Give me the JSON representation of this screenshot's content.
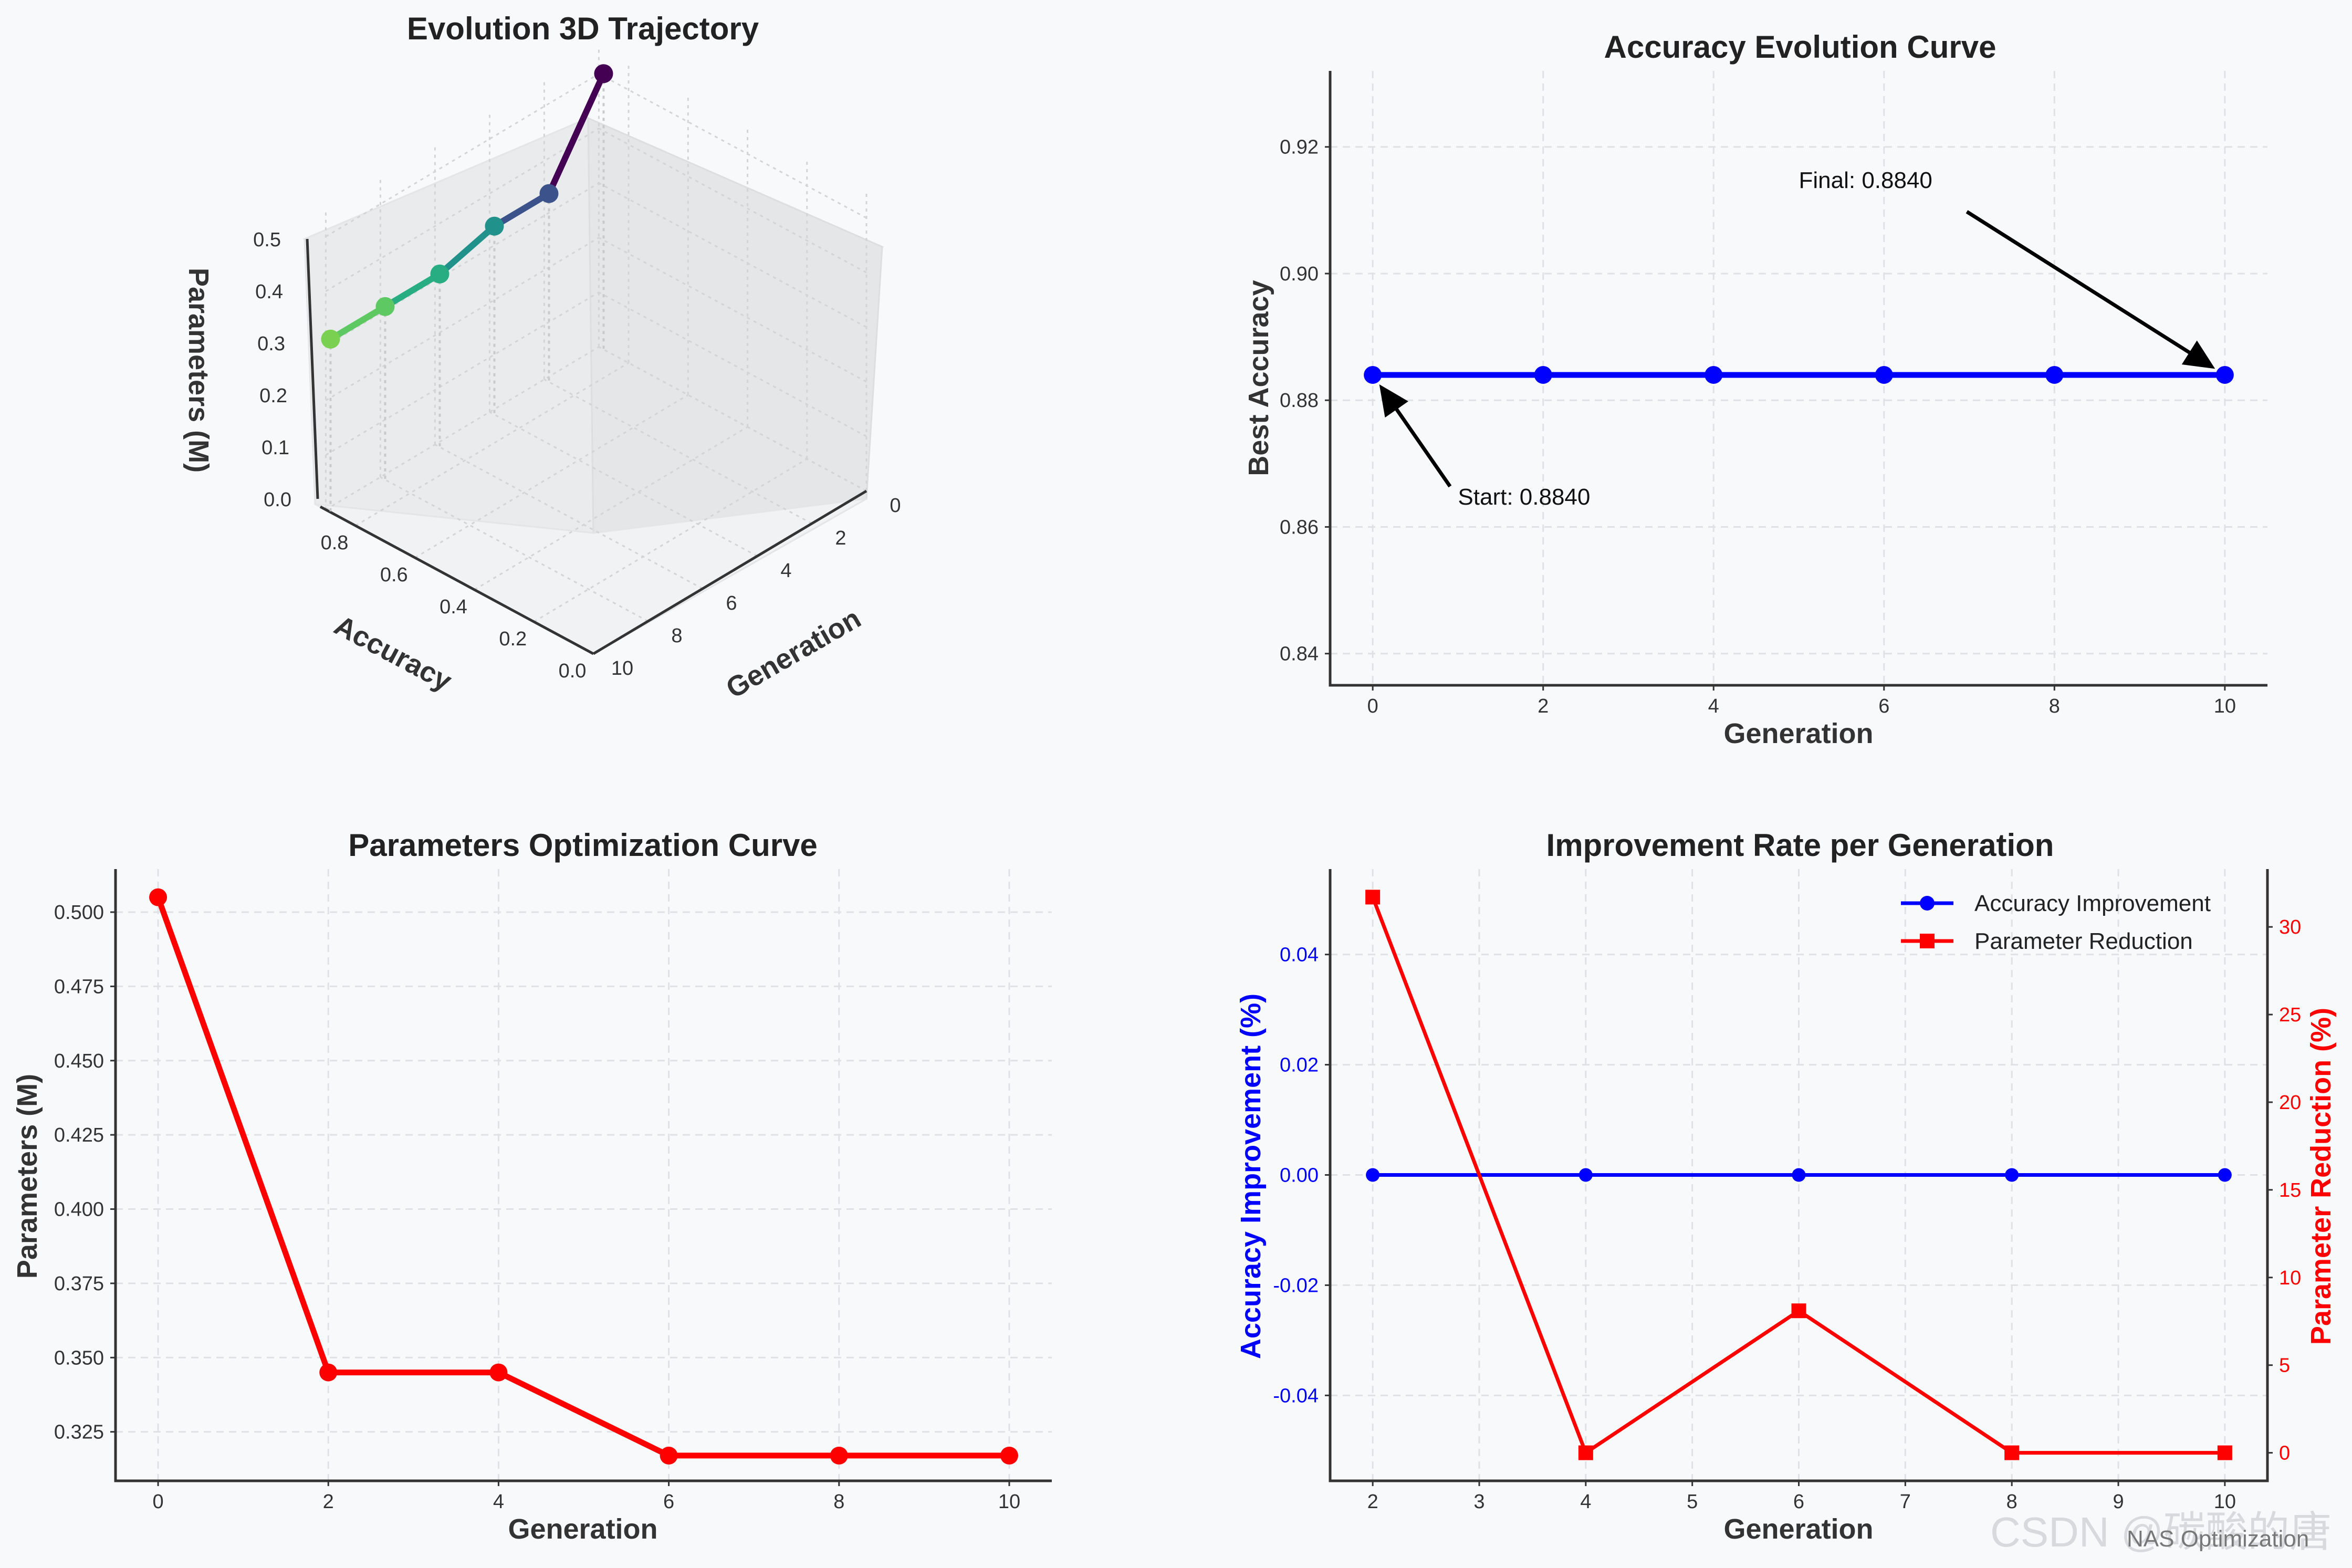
{
  "chart_data": [
    {
      "id": "traj3d",
      "type": "line3d",
      "title": "Evolution 3D Trajectory",
      "xlabel": "Generation",
      "ylabel": "Accuracy",
      "zlabel": "Parameters (M)",
      "x_ticks": [
        "0",
        "2",
        "4",
        "6",
        "8",
        "10"
      ],
      "y_ticks": [
        "0.0",
        "0.2",
        "0.4",
        "0.6",
        "0.8"
      ],
      "z_ticks": [
        "0.0",
        "0.1",
        "0.2",
        "0.3",
        "0.4",
        "0.5"
      ],
      "points": [
        {
          "generation": 0,
          "accuracy": 0.884,
          "params": 0.505,
          "color": "#440154"
        },
        {
          "generation": 2,
          "accuracy": 0.884,
          "params": 0.345,
          "color": "#3b528b"
        },
        {
          "generation": 4,
          "accuracy": 0.884,
          "params": 0.345,
          "color": "#21918c"
        },
        {
          "generation": 6,
          "accuracy": 0.884,
          "params": 0.317,
          "color": "#27ad81"
        },
        {
          "generation": 8,
          "accuracy": 0.884,
          "params": 0.317,
          "color": "#5ec962"
        },
        {
          "generation": 10,
          "accuracy": 0.884,
          "params": 0.317,
          "color": "#7ad151"
        }
      ]
    },
    {
      "id": "acc",
      "type": "line",
      "title": "Accuracy Evolution Curve",
      "xlabel": "Generation",
      "ylabel": "Best Accuracy",
      "x": [
        0,
        2,
        4,
        6,
        8,
        10
      ],
      "values": [
        0.884,
        0.884,
        0.884,
        0.884,
        0.884,
        0.884
      ],
      "xlim": [
        -0.5,
        10.5
      ],
      "ylim": [
        0.835,
        0.932
      ],
      "x_ticks": [
        0,
        2,
        4,
        6,
        8,
        10
      ],
      "y_ticks": [
        "0.84",
        "0.86",
        "0.88",
        "0.90",
        "0.92"
      ],
      "color": "#0000ff",
      "annotations": [
        {
          "text": "Start: 0.8840",
          "x": 0,
          "y": 0.884,
          "text_x": 1.0,
          "text_y": 0.8635
        },
        {
          "text": "Final: 0.8840",
          "x": 10,
          "y": 0.884,
          "text_x": 5.0,
          "text_y": 0.9135
        }
      ]
    },
    {
      "id": "params",
      "type": "line",
      "title": "Parameters Optimization Curve",
      "xlabel": "Generation",
      "ylabel": "Parameters (M)",
      "x": [
        0,
        2,
        4,
        6,
        8,
        10
      ],
      "values": [
        0.505,
        0.345,
        0.345,
        0.317,
        0.317,
        0.317
      ],
      "xlim": [
        -0.5,
        10.5
      ],
      "ylim": [
        0.3085,
        0.5145
      ],
      "x_ticks": [
        0,
        2,
        4,
        6,
        8,
        10
      ],
      "y_ticks": [
        "0.325",
        "0.350",
        "0.375",
        "0.400",
        "0.425",
        "0.450",
        "0.475",
        "0.500"
      ],
      "color": "#ff0000"
    },
    {
      "id": "improve",
      "type": "line",
      "title": "Improvement Rate per Generation",
      "xlabel": "Generation",
      "ylabel": "Accuracy Improvement (%)",
      "y2label": "Parameter Reduction (%)",
      "x": [
        2,
        4,
        6,
        8,
        10
      ],
      "xlim": [
        1.6,
        10.4
      ],
      "ylim": [
        -0.0555,
        0.0555
      ],
      "y2lim": [
        -1.6,
        33.3
      ],
      "x_ticks": [
        "2",
        "3",
        "4",
        "5",
        "6",
        "7",
        "8",
        "9",
        "10"
      ],
      "y_ticks": [
        "-0.04",
        "-0.02",
        "0.00",
        "0.02",
        "0.04"
      ],
      "y2_ticks": [
        "0",
        "5",
        "10",
        "15",
        "20",
        "25",
        "30"
      ],
      "series": [
        {
          "name": "Accuracy Improvement",
          "axis": "left",
          "color": "#0000ff",
          "values": [
            0,
            0,
            0,
            0,
            0
          ]
        },
        {
          "name": "Parameter Reduction",
          "axis": "right",
          "color": "#ff0000",
          "values": [
            31.7,
            0,
            8.1,
            0,
            0
          ]
        }
      ]
    }
  ],
  "watermark": {
    "text": "CSDN @碳酸的唐",
    "subtext": "NAS Optimization"
  }
}
